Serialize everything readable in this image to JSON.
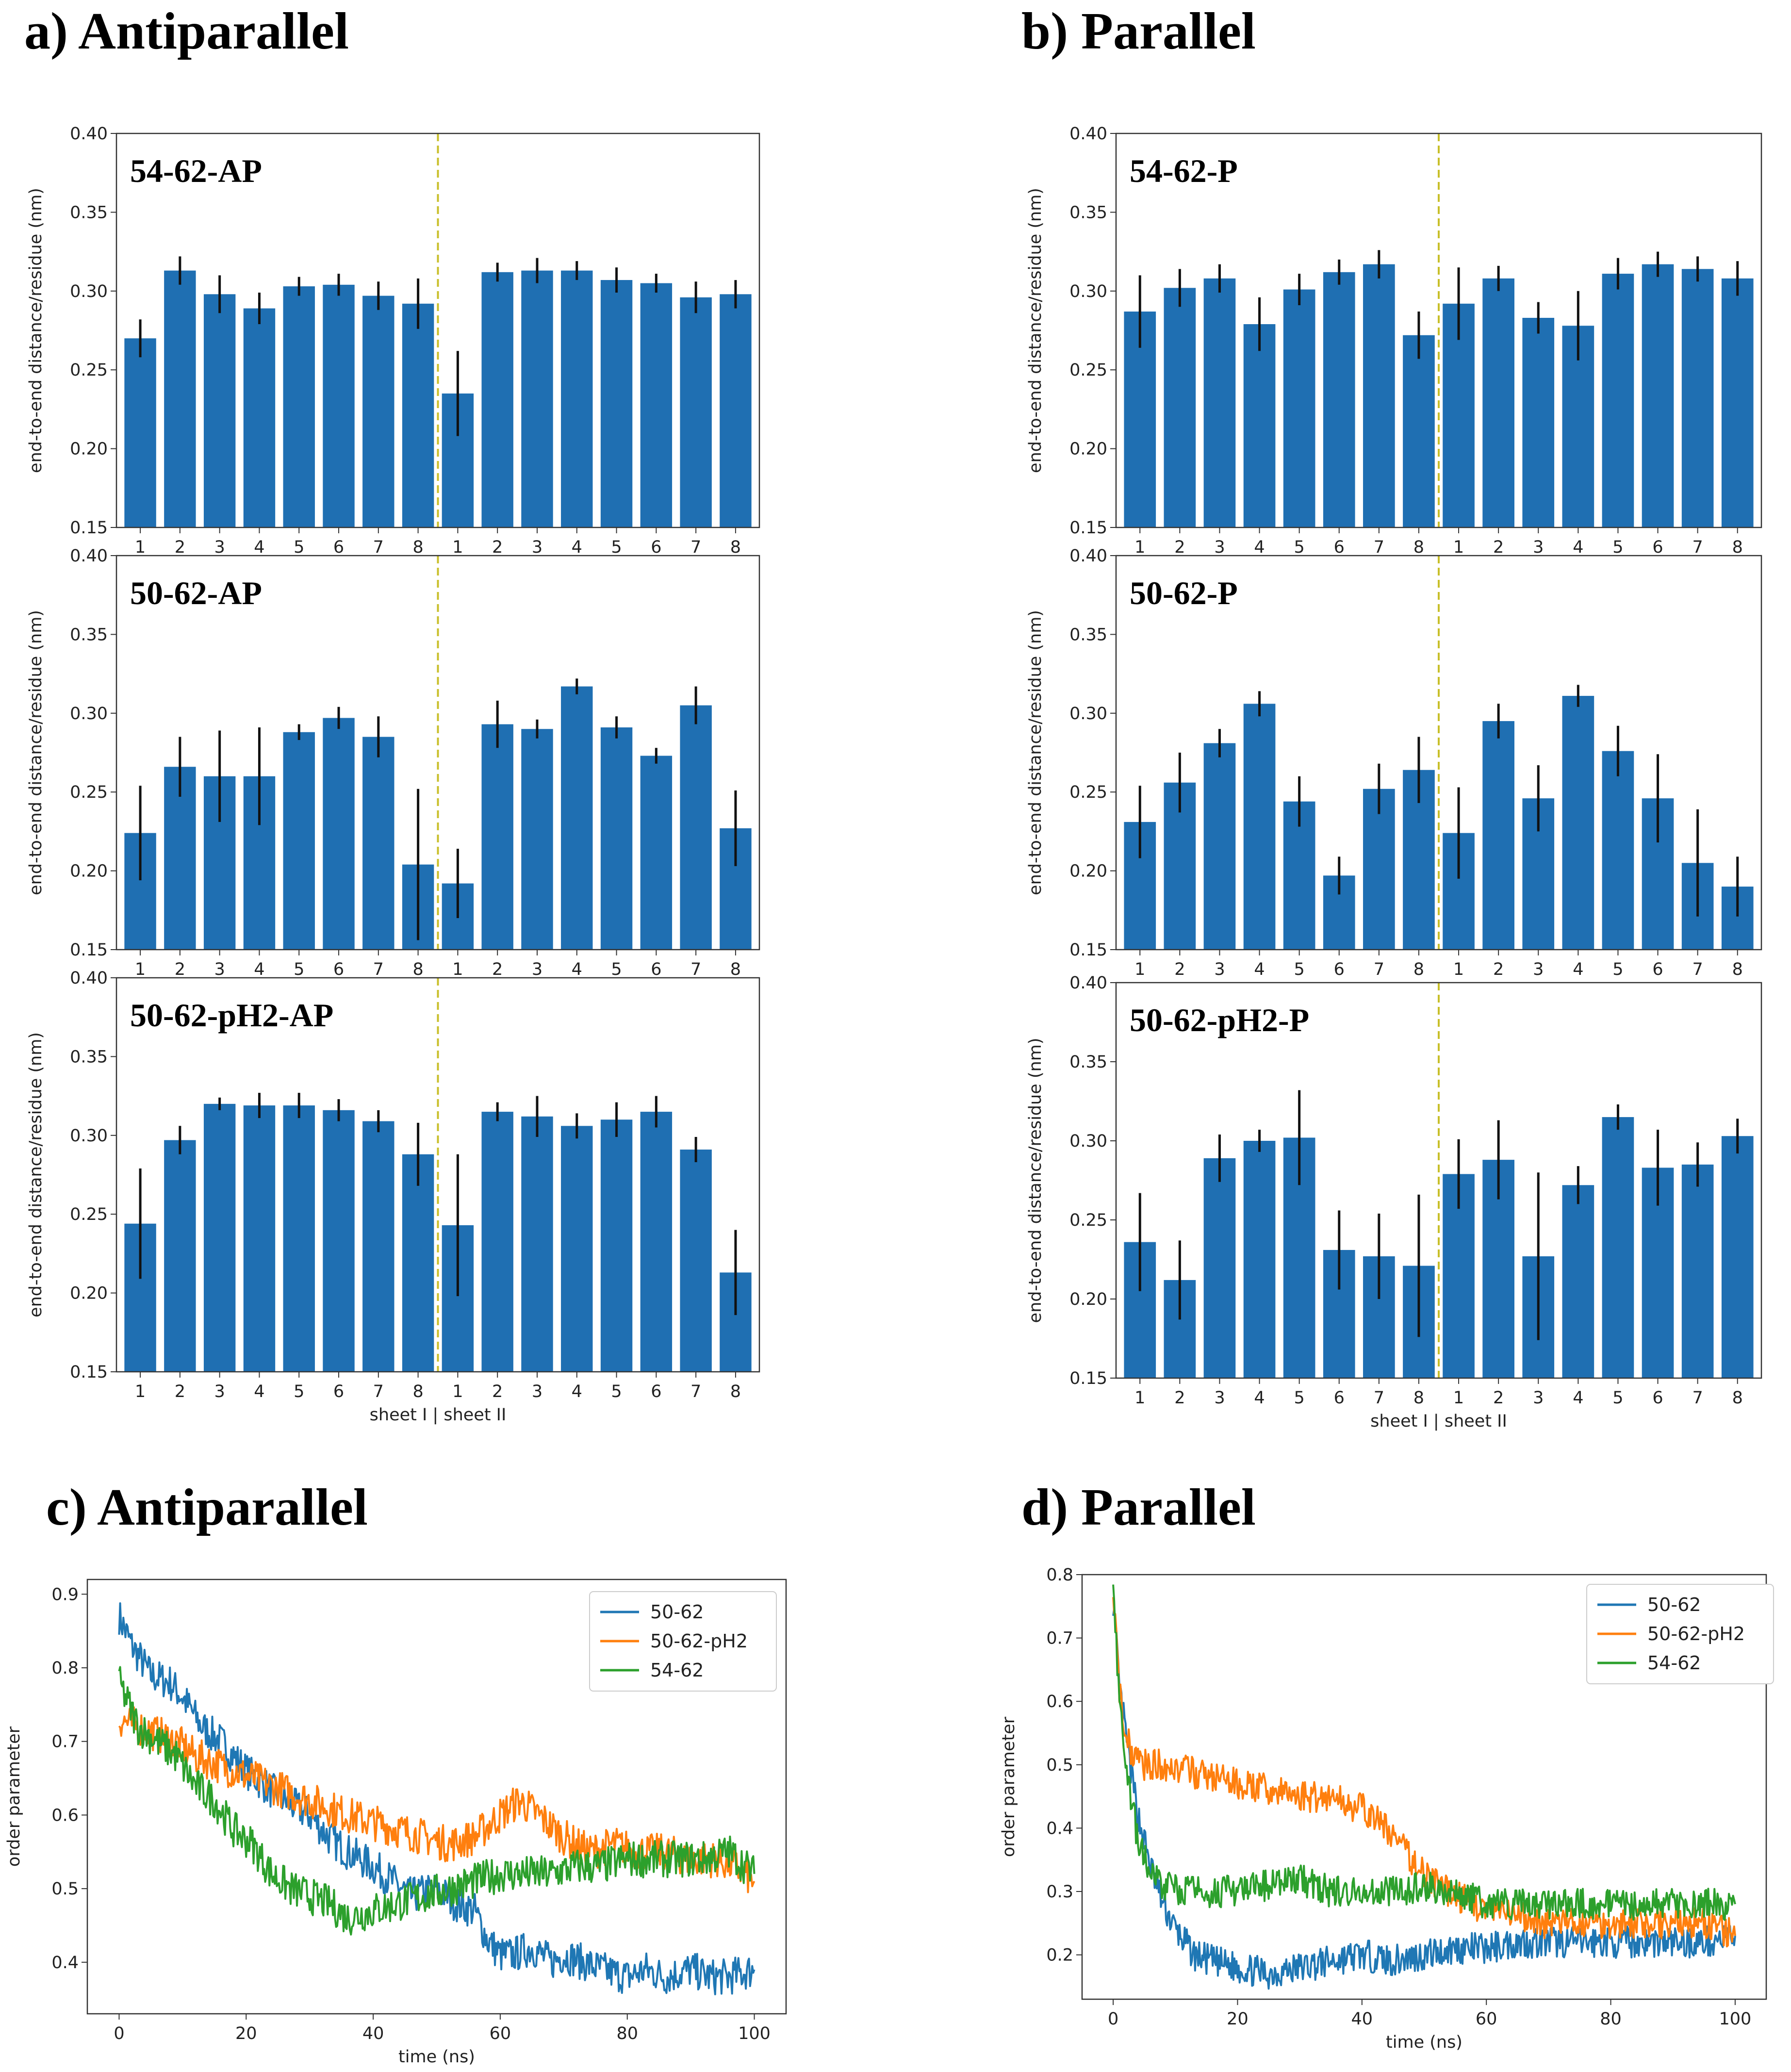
{
  "colors": {
    "bar": "#1f6fb2",
    "divider": "#c8bf2a",
    "err": "#111111",
    "series": [
      "#1f77b4",
      "#ff7f0e",
      "#2ca02c"
    ]
  },
  "section_titles": {
    "a": "a) Antiparallel",
    "b": "b) Parallel",
    "c": "c) Antiparallel",
    "d": "d) Parallel"
  },
  "chart_data": [
    {
      "type": "bar",
      "id": "a1",
      "label": "54-62-AP",
      "ylabel": "end-to-end distance/residue (nm)",
      "ylim": [
        0.15,
        0.4
      ],
      "yticks": [
        "0.15",
        "0.20",
        "0.25",
        "0.30",
        "0.35",
        "0.40"
      ],
      "categories": [
        "1",
        "2",
        "3",
        "4",
        "5",
        "6",
        "7",
        "8",
        "1",
        "2",
        "3",
        "4",
        "5",
        "6",
        "7",
        "8"
      ],
      "values": [
        0.27,
        0.313,
        0.298,
        0.289,
        0.303,
        0.304,
        0.297,
        0.292,
        0.235,
        0.312,
        0.313,
        0.313,
        0.307,
        0.305,
        0.296,
        0.298
      ],
      "errors": [
        0.012,
        0.009,
        0.012,
        0.01,
        0.006,
        0.007,
        0.009,
        0.016,
        0.027,
        0.006,
        0.008,
        0.006,
        0.008,
        0.006,
        0.01,
        0.009
      ],
      "divider_after": 8
    },
    {
      "type": "bar",
      "id": "a2",
      "label": "50-62-AP",
      "ylabel": "end-to-end distance/residue (nm)",
      "ylim": [
        0.15,
        0.4
      ],
      "yticks": [
        "0.15",
        "0.20",
        "0.25",
        "0.30",
        "0.35",
        "0.40"
      ],
      "categories": [
        "1",
        "2",
        "3",
        "4",
        "5",
        "6",
        "7",
        "8",
        "1",
        "2",
        "3",
        "4",
        "5",
        "6",
        "7",
        "8"
      ],
      "values": [
        0.224,
        0.266,
        0.26,
        0.26,
        0.288,
        0.297,
        0.285,
        0.204,
        0.192,
        0.293,
        0.29,
        0.317,
        0.291,
        0.273,
        0.305,
        0.227
      ],
      "errors": [
        0.03,
        0.019,
        0.029,
        0.031,
        0.005,
        0.007,
        0.013,
        0.048,
        0.022,
        0.015,
        0.006,
        0.005,
        0.007,
        0.005,
        0.012,
        0.024
      ],
      "divider_after": 8
    },
    {
      "type": "bar",
      "id": "a3",
      "label": "50-62-pH2-AP",
      "ylabel": "end-to-end distance/residue (nm)",
      "xlabel": "sheet I  | sheet II",
      "ylim": [
        0.15,
        0.4
      ],
      "yticks": [
        "0.15",
        "0.20",
        "0.25",
        "0.30",
        "0.35",
        "0.40"
      ],
      "categories": [
        "1",
        "2",
        "3",
        "4",
        "5",
        "6",
        "7",
        "8",
        "1",
        "2",
        "3",
        "4",
        "5",
        "6",
        "7",
        "8"
      ],
      "values": [
        0.244,
        0.297,
        0.32,
        0.319,
        0.319,
        0.316,
        0.309,
        0.288,
        0.243,
        0.315,
        0.312,
        0.306,
        0.31,
        0.315,
        0.291,
        0.213
      ],
      "errors": [
        0.035,
        0.009,
        0.004,
        0.008,
        0.008,
        0.007,
        0.007,
        0.02,
        0.045,
        0.006,
        0.013,
        0.008,
        0.011,
        0.01,
        0.008,
        0.027
      ],
      "divider_after": 8
    },
    {
      "type": "bar",
      "id": "b1",
      "label": "54-62-P",
      "ylabel": "end-to-end distance/residue (nm)",
      "ylim": [
        0.15,
        0.4
      ],
      "yticks": [
        "0.15",
        "0.20",
        "0.25",
        "0.30",
        "0.35",
        "0.40"
      ],
      "categories": [
        "1",
        "2",
        "3",
        "4",
        "5",
        "6",
        "7",
        "8",
        "1",
        "2",
        "3",
        "4",
        "5",
        "6",
        "7",
        "8"
      ],
      "values": [
        0.287,
        0.302,
        0.308,
        0.279,
        0.301,
        0.312,
        0.317,
        0.272,
        0.292,
        0.308,
        0.283,
        0.278,
        0.311,
        0.317,
        0.314,
        0.308
      ],
      "errors": [
        0.023,
        0.012,
        0.009,
        0.017,
        0.01,
        0.008,
        0.009,
        0.015,
        0.023,
        0.008,
        0.01,
        0.022,
        0.01,
        0.008,
        0.008,
        0.011
      ],
      "divider_after": 8
    },
    {
      "type": "bar",
      "id": "b2",
      "label": "50-62-P",
      "ylabel": "end-to-end distance/residue (nm)",
      "ylim": [
        0.15,
        0.4
      ],
      "yticks": [
        "0.15",
        "0.20",
        "0.25",
        "0.30",
        "0.35",
        "0.40"
      ],
      "categories": [
        "1",
        "2",
        "3",
        "4",
        "5",
        "6",
        "7",
        "8",
        "1",
        "2",
        "3",
        "4",
        "5",
        "6",
        "7",
        "8"
      ],
      "values": [
        0.231,
        0.256,
        0.281,
        0.306,
        0.244,
        0.197,
        0.252,
        0.264,
        0.224,
        0.295,
        0.246,
        0.311,
        0.276,
        0.246,
        0.205,
        0.19
      ],
      "errors": [
        0.023,
        0.019,
        0.009,
        0.008,
        0.016,
        0.012,
        0.016,
        0.021,
        0.029,
        0.011,
        0.021,
        0.007,
        0.016,
        0.028,
        0.034,
        0.019
      ],
      "divider_after": 8
    },
    {
      "type": "bar",
      "id": "b3",
      "label": "50-62-pH2-P",
      "ylabel": "end-to-end distance/residue (nm)",
      "xlabel": "sheet I  | sheet II",
      "ylim": [
        0.15,
        0.4
      ],
      "yticks": [
        "0.15",
        "0.20",
        "0.25",
        "0.30",
        "0.35",
        "0.40"
      ],
      "categories": [
        "1",
        "2",
        "3",
        "4",
        "5",
        "6",
        "7",
        "8",
        "1",
        "2",
        "3",
        "4",
        "5",
        "6",
        "7",
        "8"
      ],
      "values": [
        0.236,
        0.212,
        0.289,
        0.3,
        0.302,
        0.231,
        0.227,
        0.221,
        0.279,
        0.288,
        0.227,
        0.272,
        0.315,
        0.283,
        0.285,
        0.303
      ],
      "errors": [
        0.031,
        0.025,
        0.015,
        0.007,
        0.03,
        0.025,
        0.027,
        0.045,
        0.022,
        0.025,
        0.053,
        0.012,
        0.008,
        0.024,
        0.014,
        0.011
      ],
      "divider_after": 8
    },
    {
      "type": "line",
      "id": "c",
      "xlabel": "time (ns)",
      "ylabel": "order parameter",
      "xlim": [
        -5,
        105
      ],
      "ylim": [
        0.33,
        0.92
      ],
      "xticks": [
        "0",
        "20",
        "40",
        "60",
        "80",
        "100"
      ],
      "yticks": [
        "0.4",
        "0.5",
        "0.6",
        "0.7",
        "0.8",
        "0.9"
      ],
      "series": [
        {
          "name": "50-62",
          "x": [
            0,
            2,
            5,
            8,
            10,
            13,
            16,
            18,
            20,
            23,
            26,
            30,
            33,
            36,
            40,
            43,
            46,
            50,
            53,
            56,
            58,
            60,
            62,
            65,
            68,
            70,
            73,
            76,
            80,
            83,
            86,
            90,
            93,
            96,
            100
          ],
          "y": [
            0.87,
            0.83,
            0.79,
            0.78,
            0.76,
            0.72,
            0.7,
            0.68,
            0.66,
            0.64,
            0.62,
            0.6,
            0.57,
            0.55,
            0.53,
            0.51,
            0.49,
            0.5,
            0.48,
            0.47,
            0.43,
            0.41,
            0.41,
            0.42,
            0.4,
            0.41,
            0.4,
            0.39,
            0.38,
            0.39,
            0.38,
            0.39,
            0.38,
            0.38,
            0.39
          ]
        },
        {
          "name": "50-62-pH2",
          "x": [
            0,
            3,
            6,
            9,
            12,
            15,
            18,
            21,
            24,
            27,
            30,
            33,
            36,
            40,
            44,
            48,
            52,
            56,
            60,
            63,
            66,
            70,
            74,
            78,
            82,
            86,
            90,
            94,
            97,
            100
          ],
          "y": [
            0.73,
            0.72,
            0.71,
            0.7,
            0.68,
            0.67,
            0.66,
            0.65,
            0.64,
            0.63,
            0.62,
            0.61,
            0.6,
            0.59,
            0.58,
            0.57,
            0.56,
            0.57,
            0.6,
            0.62,
            0.6,
            0.57,
            0.55,
            0.56,
            0.55,
            0.55,
            0.54,
            0.54,
            0.53,
            0.51
          ]
        },
        {
          "name": "54-62",
          "x": [
            0,
            3,
            6,
            9,
            12,
            15,
            18,
            21,
            24,
            27,
            30,
            33,
            36,
            40,
            44,
            48,
            52,
            56,
            60,
            64,
            68,
            72,
            76,
            80,
            84,
            88,
            92,
            96,
            100
          ],
          "y": [
            0.78,
            0.72,
            0.7,
            0.68,
            0.64,
            0.62,
            0.58,
            0.56,
            0.52,
            0.5,
            0.49,
            0.48,
            0.46,
            0.47,
            0.48,
            0.49,
            0.5,
            0.51,
            0.52,
            0.52,
            0.52,
            0.53,
            0.53,
            0.54,
            0.54,
            0.54,
            0.54,
            0.55,
            0.52
          ]
        }
      ],
      "legend": "top-right"
    },
    {
      "type": "line",
      "id": "d",
      "xlabel": "time (ns)",
      "ylabel": "order parameter",
      "xlim": [
        -5,
        105
      ],
      "ylim": [
        0.13,
        0.8
      ],
      "xticks": [
        "0",
        "20",
        "40",
        "60",
        "80",
        "100"
      ],
      "yticks": [
        "0.2",
        "0.3",
        "0.4",
        "0.5",
        "0.6",
        "0.7",
        "0.8"
      ],
      "series": [
        {
          "name": "50-62",
          "x": [
            0,
            1,
            2,
            3,
            4,
            6,
            8,
            10,
            13,
            16,
            20,
            25,
            30,
            35,
            40,
            45,
            50,
            55,
            60,
            65,
            70,
            75,
            80,
            85,
            90,
            95,
            100
          ],
          "y": [
            0.76,
            0.62,
            0.55,
            0.48,
            0.42,
            0.34,
            0.28,
            0.24,
            0.2,
            0.19,
            0.18,
            0.17,
            0.18,
            0.19,
            0.2,
            0.19,
            0.2,
            0.21,
            0.21,
            0.22,
            0.22,
            0.22,
            0.22,
            0.22,
            0.22,
            0.22,
            0.23
          ]
        },
        {
          "name": "50-62-pH2",
          "x": [
            0,
            1,
            2,
            3,
            5,
            8,
            12,
            16,
            20,
            25,
            30,
            35,
            40,
            44,
            48,
            52,
            56,
            60,
            65,
            70,
            75,
            80,
            85,
            90,
            95,
            100
          ],
          "y": [
            0.76,
            0.62,
            0.55,
            0.52,
            0.5,
            0.5,
            0.49,
            0.48,
            0.47,
            0.46,
            0.45,
            0.45,
            0.43,
            0.4,
            0.35,
            0.31,
            0.29,
            0.27,
            0.26,
            0.25,
            0.25,
            0.25,
            0.25,
            0.25,
            0.25,
            0.23
          ]
        },
        {
          "name": "54-62",
          "x": [
            0,
            1,
            2,
            3,
            4,
            6,
            8,
            12,
            16,
            20,
            25,
            30,
            35,
            40,
            45,
            50,
            55,
            60,
            65,
            70,
            75,
            80,
            85,
            90,
            95,
            100
          ],
          "y": [
            0.77,
            0.6,
            0.5,
            0.44,
            0.38,
            0.33,
            0.31,
            0.3,
            0.3,
            0.3,
            0.31,
            0.32,
            0.3,
            0.3,
            0.3,
            0.31,
            0.3,
            0.28,
            0.28,
            0.28,
            0.28,
            0.28,
            0.28,
            0.28,
            0.28,
            0.28
          ]
        }
      ],
      "legend": "top-right"
    }
  ]
}
